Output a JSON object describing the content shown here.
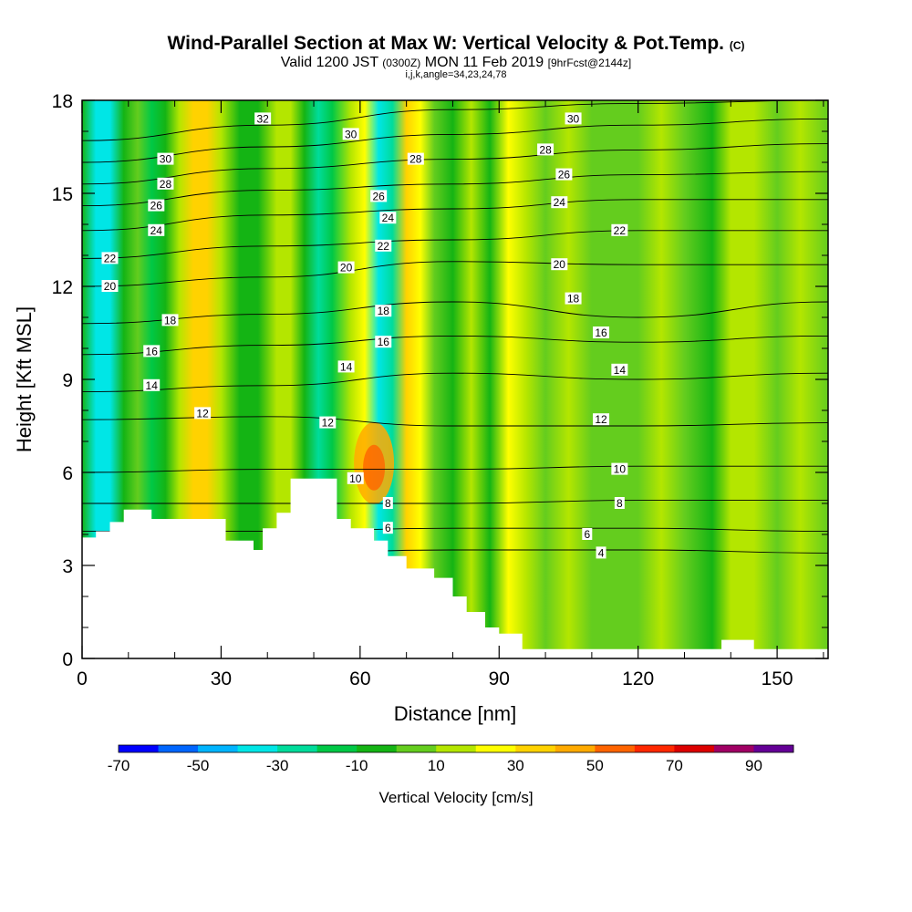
{
  "title": {
    "main": "Wind-Parallel Section at Max W: Vertical Velocity & Pot.Temp.",
    "mark": "(C)",
    "valid_prefix": "Valid 1200 JST",
    "zulu": "(0300Z)",
    "date": "MON 11 Feb 2019",
    "forecast": "[9hrFcst@2144z]",
    "indices": "i,j,k,angle=34,23,24,78"
  },
  "chart_data": {
    "type": "heatmap",
    "xlabel": "Distance [nm]",
    "ylabel": "Height [Kft MSL]",
    "xlim": [
      0,
      161
    ],
    "ylim": [
      0,
      18
    ],
    "x_ticks": [
      0,
      30,
      60,
      90,
      120,
      150
    ],
    "y_ticks": [
      0,
      3,
      6,
      9,
      12,
      15,
      18
    ],
    "colorbar": {
      "label": "Vertical Velocity [cm/s]",
      "tick_labels": [
        "-70",
        "-50",
        "-30",
        "-10",
        "10",
        "30",
        "50",
        "70",
        "90"
      ],
      "bins": [
        -70,
        -60,
        -50,
        -40,
        -30,
        -20,
        -10,
        0,
        10,
        20,
        30,
        40,
        50,
        60,
        70,
        80,
        90
      ],
      "colors": [
        "#0000ff",
        "#0066ff",
        "#00b4ff",
        "#00e6e6",
        "#00dc9b",
        "#00c846",
        "#14b414",
        "#64cd1e",
        "#b4e600",
        "#ffff00",
        "#ffd200",
        "#ffaa00",
        "#ff6400",
        "#ff2800",
        "#dc0000",
        "#a00064",
        "#640096"
      ]
    },
    "velocity_columns": [
      {
        "x": 0,
        "w": -5
      },
      {
        "x": 3,
        "w": -40
      },
      {
        "x": 6,
        "w": -35
      },
      {
        "x": 9,
        "w": -5
      },
      {
        "x": 12,
        "w": 5
      },
      {
        "x": 15,
        "w": -15
      },
      {
        "x": 18,
        "w": -10
      },
      {
        "x": 21,
        "w": 15
      },
      {
        "x": 24,
        "w": 35
      },
      {
        "x": 27,
        "w": 30
      },
      {
        "x": 30,
        "w": 10
      },
      {
        "x": 34,
        "w": -10
      },
      {
        "x": 38,
        "w": -5
      },
      {
        "x": 42,
        "w": 15
      },
      {
        "x": 45,
        "w": 10
      },
      {
        "x": 48,
        "w": -10
      },
      {
        "x": 51,
        "w": -25
      },
      {
        "x": 54,
        "w": -15
      },
      {
        "x": 58,
        "w": 15
      },
      {
        "x": 61,
        "w": 25
      },
      {
        "x": 64,
        "w": -40
      },
      {
        "x": 67,
        "w": -30
      },
      {
        "x": 70,
        "w": 35
      },
      {
        "x": 73,
        "w": 25
      },
      {
        "x": 76,
        "w": 5
      },
      {
        "x": 80,
        "w": -10
      },
      {
        "x": 84,
        "w": 10
      },
      {
        "x": 88,
        "w": -5
      },
      {
        "x": 92,
        "w": 20
      },
      {
        "x": 96,
        "w": 15
      },
      {
        "x": 100,
        "w": 5
      },
      {
        "x": 105,
        "w": 10
      },
      {
        "x": 110,
        "w": 5
      },
      {
        "x": 115,
        "w": 5
      },
      {
        "x": 120,
        "w": 0
      },
      {
        "x": 125,
        "w": 10
      },
      {
        "x": 130,
        "w": 5
      },
      {
        "x": 136,
        "w": -5
      },
      {
        "x": 140,
        "w": 10
      },
      {
        "x": 145,
        "w": 15
      },
      {
        "x": 150,
        "w": 5
      },
      {
        "x": 155,
        "w": 10
      },
      {
        "x": 161,
        "w": 5
      }
    ],
    "max_updraft": {
      "x": 63,
      "y": 6.3,
      "w": 45
    },
    "terrain": [
      [
        0,
        3.9
      ],
      [
        3,
        4.1
      ],
      [
        6,
        4.4
      ],
      [
        9,
        4.8
      ],
      [
        15,
        4.5
      ],
      [
        27,
        4.5
      ],
      [
        31,
        3.8
      ],
      [
        37,
        3.5
      ],
      [
        39,
        4.2
      ],
      [
        42,
        4.7
      ],
      [
        45,
        5.8
      ],
      [
        52,
        5.8
      ],
      [
        55,
        4.5
      ],
      [
        58,
        4.2
      ],
      [
        63,
        3.8
      ],
      [
        66,
        3.3
      ],
      [
        70,
        2.9
      ],
      [
        76,
        2.6
      ],
      [
        80,
        2.0
      ],
      [
        83,
        1.5
      ],
      [
        87,
        1.0
      ],
      [
        90,
        0.8
      ],
      [
        95,
        0.3
      ],
      [
        136,
        0.3
      ],
      [
        138,
        0.6
      ],
      [
        143,
        0.6
      ],
      [
        145,
        0.3
      ],
      [
        161,
        0.3
      ]
    ],
    "theta_contours": [
      {
        "label": "4",
        "y": [
          3.4,
          3.4,
          3.5,
          3.5,
          3.4
        ]
      },
      {
        "label": "6",
        "y": [
          4.1,
          4.1,
          4.2,
          4.2,
          4.1
        ]
      },
      {
        "label": "8",
        "y": [
          5.0,
          5.0,
          5.0,
          5.1,
          5.1
        ]
      },
      {
        "label": "10",
        "y": [
          6.0,
          6.1,
          6.1,
          6.2,
          6.2
        ]
      },
      {
        "label": "12",
        "y": [
          7.7,
          7.8,
          7.5,
          7.5,
          7.6
        ]
      },
      {
        "label": "14",
        "y": [
          8.6,
          8.8,
          9.2,
          9.0,
          9.2
        ]
      },
      {
        "label": "16",
        "y": [
          9.8,
          10.1,
          10.4,
          10.2,
          10.4
        ]
      },
      {
        "label": "18",
        "y": [
          10.8,
          11.1,
          11.5,
          11.0,
          11.5
        ]
      },
      {
        "label": "20",
        "y": [
          12.0,
          12.3,
          12.8,
          12.7,
          12.7
        ]
      },
      {
        "label": "22",
        "y": [
          12.9,
          13.3,
          13.5,
          13.8,
          13.8
        ]
      },
      {
        "label": "24",
        "y": [
          13.8,
          14.3,
          14.5,
          14.8,
          14.8
        ]
      },
      {
        "label": "26",
        "y": [
          14.6,
          15.1,
          15.3,
          15.6,
          15.7
        ]
      },
      {
        "label": "28",
        "y": [
          15.3,
          15.8,
          16.1,
          16.4,
          16.6
        ]
      },
      {
        "label": "30",
        "y": [
          16.0,
          16.5,
          16.9,
          17.2,
          17.4
        ]
      },
      {
        "label": "32",
        "y": [
          16.7,
          17.2,
          17.7,
          17.9,
          18.0
        ]
      }
    ],
    "contour_x": [
      0,
      40,
      80,
      120,
      161
    ],
    "contour_labels": [
      {
        "text": "32",
        "x": 39,
        "y": 17.4
      },
      {
        "text": "30",
        "x": 18,
        "y": 16.1
      },
      {
        "text": "30",
        "x": 58,
        "y": 16.9
      },
      {
        "text": "30",
        "x": 106,
        "y": 17.4
      },
      {
        "text": "28",
        "x": 18,
        "y": 15.3
      },
      {
        "text": "28",
        "x": 72,
        "y": 16.1
      },
      {
        "text": "28",
        "x": 100,
        "y": 16.4
      },
      {
        "text": "26",
        "x": 16,
        "y": 14.6
      },
      {
        "text": "26",
        "x": 64,
        "y": 14.9
      },
      {
        "text": "26",
        "x": 104,
        "y": 15.6
      },
      {
        "text": "24",
        "x": 16,
        "y": 13.8
      },
      {
        "text": "24",
        "x": 66,
        "y": 14.2
      },
      {
        "text": "24",
        "x": 103,
        "y": 14.7
      },
      {
        "text": "22",
        "x": 6,
        "y": 12.9
      },
      {
        "text": "22",
        "x": 65,
        "y": 13.3
      },
      {
        "text": "22",
        "x": 116,
        "y": 13.8
      },
      {
        "text": "20",
        "x": 6,
        "y": 12.0
      },
      {
        "text": "20",
        "x": 57,
        "y": 12.6
      },
      {
        "text": "20",
        "x": 103,
        "y": 12.7
      },
      {
        "text": "18",
        "x": 19,
        "y": 10.9
      },
      {
        "text": "18",
        "x": 65,
        "y": 11.2
      },
      {
        "text": "18",
        "x": 106,
        "y": 11.6
      },
      {
        "text": "16",
        "x": 15,
        "y": 9.9
      },
      {
        "text": "16",
        "x": 65,
        "y": 10.2
      },
      {
        "text": "16",
        "x": 112,
        "y": 10.5
      },
      {
        "text": "14",
        "x": 15,
        "y": 8.8
      },
      {
        "text": "14",
        "x": 57,
        "y": 9.4
      },
      {
        "text": "14",
        "x": 116,
        "y": 9.3
      },
      {
        "text": "12",
        "x": 26,
        "y": 7.9
      },
      {
        "text": "12",
        "x": 53,
        "y": 7.6
      },
      {
        "text": "12",
        "x": 112,
        "y": 7.7
      },
      {
        "text": "10",
        "x": 59,
        "y": 5.8
      },
      {
        "text": "10",
        "x": 116,
        "y": 6.1
      },
      {
        "text": "8",
        "x": 66,
        "y": 5.0
      },
      {
        "text": "8",
        "x": 116,
        "y": 5.0
      },
      {
        "text": "6",
        "x": 66,
        "y": 4.2
      },
      {
        "text": "6",
        "x": 109,
        "y": 4.0
      },
      {
        "text": "4",
        "x": 112,
        "y": 3.4
      }
    ]
  }
}
